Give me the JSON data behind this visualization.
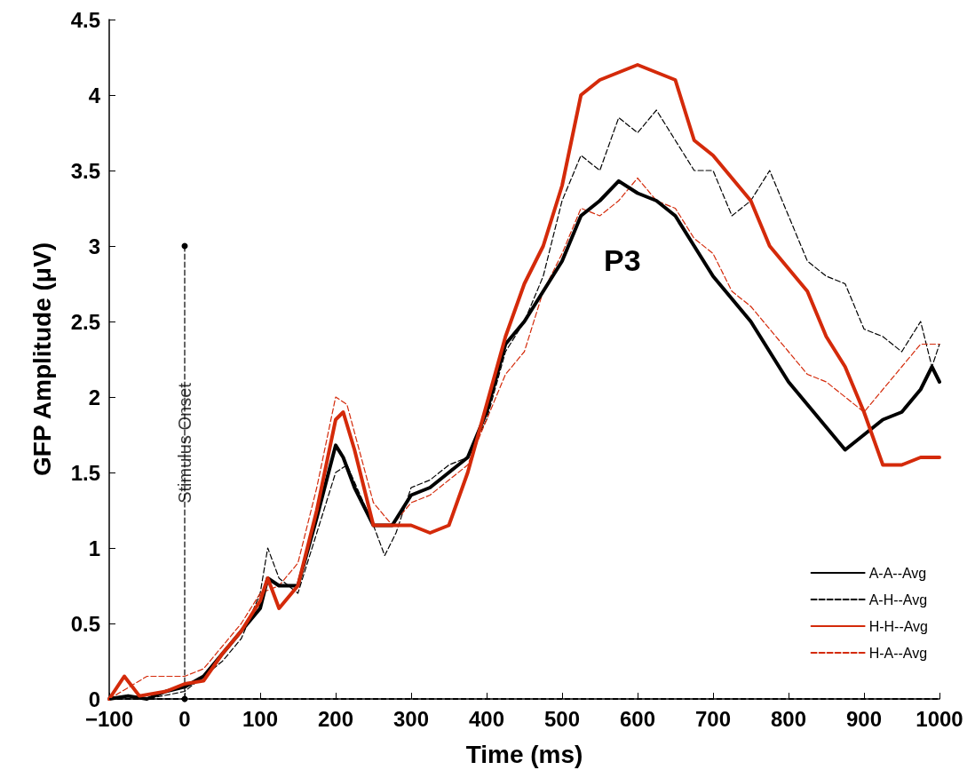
{
  "chart_data": {
    "type": "line",
    "xlabel": "Time (ms)",
    "ylabel": "GFP Amplitude (μV)",
    "xlim": [
      -100,
      1000
    ],
    "xticks": [
      {
        "value": -100,
        "label": "−100"
      },
      0,
      100,
      200,
      300,
      400,
      500,
      600,
      700,
      800,
      900,
      1000
    ],
    "ylim": [
      0,
      4.5
    ],
    "yticks": [
      0,
      0.5,
      1,
      1.5,
      2,
      2.5,
      3,
      3.5,
      4,
      4.5
    ],
    "grid": false,
    "legend": "bottom right",
    "marker": "none",
    "annotations": [
      {
        "text": "Stimulus Onset",
        "x": 0,
        "y": 1.8
      },
      "P3"
    ],
    "ref_lines": [
      {
        "axis": "y",
        "value": 0,
        "color": "#000000",
        "line_style": "dashed"
      }
    ],
    "series": [
      {
        "name": "A-H--Avg",
        "color": "#000000",
        "line_style": "dashed",
        "x": [
          -100,
          -50,
          0,
          50,
          75,
          100,
          110,
          125,
          150,
          175,
          200,
          215,
          250,
          265,
          280,
          300,
          325,
          350,
          375,
          400,
          425,
          450,
          475,
          500,
          525,
          550,
          575,
          600,
          625,
          650,
          675,
          700,
          725,
          750,
          775,
          800,
          825,
          850,
          875,
          900,
          925,
          950,
          975,
          990,
          1000
        ],
        "values": [
          0,
          0,
          0.05,
          0.25,
          0.4,
          0.7,
          1.0,
          0.8,
          0.7,
          1.1,
          1.5,
          1.55,
          1.15,
          0.95,
          1.1,
          1.4,
          1.45,
          1.55,
          1.6,
          1.85,
          2.3,
          2.5,
          2.8,
          3.3,
          3.6,
          3.5,
          3.85,
          3.75,
          3.9,
          3.7,
          3.5,
          3.5,
          3.2,
          3.3,
          3.5,
          3.2,
          2.9,
          2.8,
          2.75,
          2.45,
          2.4,
          2.3,
          2.5,
          2.2,
          2.35
        ]
      },
      {
        "name": "H-A--Avg",
        "color": "#d42a0a",
        "line_style": "dashed",
        "x": [
          -100,
          -50,
          0,
          25,
          50,
          75,
          100,
          125,
          150,
          175,
          200,
          215,
          250,
          275,
          300,
          325,
          350,
          375,
          400,
          425,
          450,
          475,
          500,
          525,
          550,
          575,
          600,
          625,
          650,
          675,
          700,
          725,
          750,
          775,
          800,
          825,
          850,
          875,
          900,
          925,
          950,
          975,
          1000
        ],
        "values": [
          0,
          0.15,
          0.15,
          0.2,
          0.35,
          0.5,
          0.7,
          0.75,
          0.9,
          1.4,
          2.0,
          1.95,
          1.3,
          1.15,
          1.3,
          1.35,
          1.45,
          1.55,
          1.85,
          2.15,
          2.3,
          2.7,
          2.95,
          3.25,
          3.2,
          3.3,
          3.45,
          3.3,
          3.25,
          3.05,
          2.95,
          2.7,
          2.6,
          2.45,
          2.3,
          2.15,
          2.1,
          2.0,
          1.9,
          2.05,
          2.2,
          2.35,
          2.35
        ]
      },
      {
        "name": "A-A--Avg",
        "color": "#000000",
        "line_style": "solid",
        "x": [
          -100,
          -75,
          -50,
          -25,
          0,
          25,
          50,
          75,
          100,
          110,
          125,
          150,
          175,
          200,
          210,
          225,
          250,
          275,
          300,
          325,
          350,
          375,
          400,
          425,
          450,
          475,
          500,
          525,
          550,
          575,
          600,
          625,
          650,
          675,
          700,
          725,
          750,
          775,
          800,
          825,
          850,
          875,
          900,
          925,
          950,
          975,
          990,
          1000
        ],
        "values": [
          0,
          0.02,
          0,
          0.05,
          0.08,
          0.15,
          0.3,
          0.45,
          0.6,
          0.8,
          0.75,
          0.75,
          1.2,
          1.68,
          1.6,
          1.4,
          1.15,
          1.15,
          1.35,
          1.4,
          1.5,
          1.6,
          1.9,
          2.35,
          2.5,
          2.7,
          2.9,
          3.2,
          3.3,
          3.43,
          3.35,
          3.3,
          3.2,
          3.0,
          2.8,
          2.65,
          2.5,
          2.3,
          2.1,
          1.95,
          1.8,
          1.65,
          1.75,
          1.85,
          1.9,
          2.05,
          2.2,
          2.1
        ]
      },
      {
        "name": "H-H--Avg",
        "color": "#d42a0a",
        "line_style": "solid",
        "x": [
          -100,
          -80,
          -60,
          -25,
          0,
          25,
          50,
          75,
          100,
          110,
          125,
          150,
          175,
          200,
          210,
          225,
          250,
          275,
          300,
          325,
          350,
          375,
          400,
          425,
          450,
          475,
          500,
          525,
          550,
          575,
          600,
          625,
          650,
          675,
          700,
          725,
          750,
          775,
          800,
          825,
          850,
          875,
          900,
          925,
          950,
          975,
          1000
        ],
        "values": [
          0,
          0.15,
          0.02,
          0.05,
          0.1,
          0.12,
          0.3,
          0.45,
          0.65,
          0.8,
          0.6,
          0.75,
          1.25,
          1.85,
          1.9,
          1.65,
          1.15,
          1.15,
          1.15,
          1.1,
          1.15,
          1.5,
          1.95,
          2.4,
          2.75,
          3.0,
          3.4,
          4.0,
          4.1,
          4.15,
          4.2,
          4.15,
          4.1,
          3.7,
          3.6,
          3.45,
          3.3,
          3.0,
          2.85,
          2.7,
          2.4,
          2.2,
          1.9,
          1.55,
          1.55,
          1.6,
          1.6
        ]
      },
      {
        "type": "line",
        "color": "#000000",
        "line_style": "dashed",
        "marker": "circle",
        "x": [
          0,
          0
        ],
        "values": [
          0,
          3
        ]
      }
    ]
  }
}
